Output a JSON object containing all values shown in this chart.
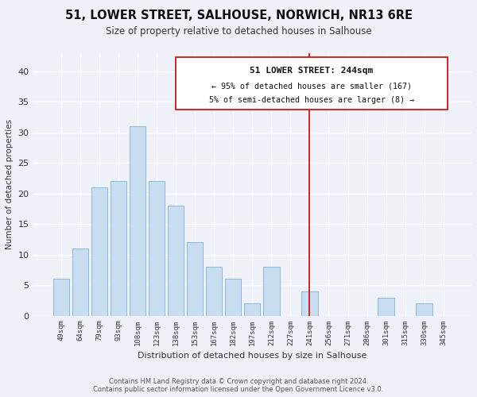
{
  "title": "51, LOWER STREET, SALHOUSE, NORWICH, NR13 6RE",
  "subtitle": "Size of property relative to detached houses in Salhouse",
  "xlabel": "Distribution of detached houses by size in Salhouse",
  "ylabel": "Number of detached properties",
  "bar_labels": [
    "49sqm",
    "64sqm",
    "79sqm",
    "93sqm",
    "108sqm",
    "123sqm",
    "138sqm",
    "153sqm",
    "167sqm",
    "182sqm",
    "197sqm",
    "212sqm",
    "227sqm",
    "241sqm",
    "256sqm",
    "271sqm",
    "286sqm",
    "301sqm",
    "315sqm",
    "330sqm",
    "345sqm"
  ],
  "bar_heights": [
    6,
    11,
    21,
    22,
    31,
    22,
    18,
    12,
    8,
    6,
    2,
    8,
    0,
    4,
    0,
    0,
    0,
    3,
    0,
    2,
    0
  ],
  "bar_color": "#c8ddf0",
  "bar_edge_color": "#8ab8d8",
  "vline_x": 13,
  "vline_color": "#cc0000",
  "annotation_title": "51 LOWER STREET: 244sqm",
  "annotation_line1": "← 95% of detached houses are smaller (167)",
  "annotation_line2": "5% of semi-detached houses are larger (8) →",
  "annotation_box_color": "#ffffff",
  "annotation_box_edge": "#cc0000",
  "ylim": [
    0,
    43
  ],
  "yticks": [
    0,
    5,
    10,
    15,
    20,
    25,
    30,
    35,
    40
  ],
  "footer1": "Contains HM Land Registry data © Crown copyright and database right 2024.",
  "footer2": "Contains public sector information licensed under the Open Government Licence v3.0.",
  "background_color": "#eef2f8"
}
